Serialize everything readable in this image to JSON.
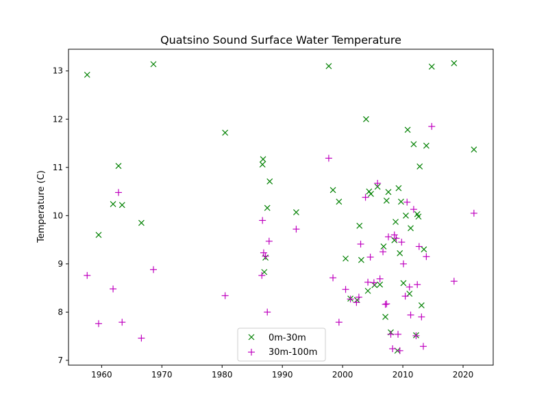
{
  "chart_data": {
    "type": "scatter",
    "title": "Quatsino Sound Surface Water Temperature",
    "xlabel": "",
    "ylabel": "Temperature (C)",
    "xlim": [
      1954.5,
      2025.0
    ],
    "ylim": [
      6.9,
      13.45
    ],
    "xticks": [
      1960,
      1970,
      1980,
      1990,
      2000,
      2010,
      2020
    ],
    "yticks": [
      7,
      8,
      9,
      10,
      11,
      12,
      13
    ],
    "grid": false,
    "legend_position": "bottom-center",
    "series": [
      {
        "name": "0m-30m",
        "marker": "x",
        "color": "#008000",
        "x": [
          1957.6,
          1959.5,
          1961.9,
          1962.8,
          1963.4,
          1966.6,
          1968.6,
          1980.5,
          1986.7,
          1986.8,
          1987.0,
          1987.2,
          1987.5,
          1987.9,
          1992.3,
          1997.7,
          1998.4,
          1999.4,
          2000.5,
          2001.3,
          2002.4,
          2002.8,
          2003.1,
          2003.9,
          2004.2,
          2004.4,
          2004.7,
          2005.3,
          2005.8,
          2006.2,
          2006.8,
          2007.1,
          2007.3,
          2007.6,
          2008.0,
          2008.6,
          2008.8,
          2009.1,
          2009.3,
          2009.5,
          2009.7,
          2010.1,
          2010.5,
          2010.8,
          2011.1,
          2011.3,
          2011.8,
          2012.2,
          2012.4,
          2012.6,
          2012.8,
          2013.1,
          2013.5,
          2013.9,
          2014.8,
          2018.5,
          2021.8
        ],
        "y": [
          12.92,
          9.6,
          10.24,
          11.03,
          10.22,
          9.85,
          13.14,
          11.72,
          11.06,
          11.17,
          8.83,
          9.13,
          10.16,
          10.71,
          10.07,
          13.1,
          10.53,
          10.29,
          9.11,
          8.28,
          8.25,
          9.79,
          9.08,
          12.0,
          8.44,
          10.5,
          10.45,
          8.56,
          10.6,
          8.57,
          9.36,
          7.9,
          10.31,
          10.49,
          7.58,
          9.49,
          9.87,
          7.2,
          10.57,
          9.22,
          10.29,
          8.6,
          10.0,
          11.78,
          8.38,
          9.74,
          11.48,
          7.52,
          10.03,
          9.98,
          11.02,
          8.14,
          9.3,
          11.45,
          13.09,
          13.16,
          11.37
        ]
      },
      {
        "name": "30m-100m",
        "marker": "+",
        "color": "#bf00bf",
        "x": [
          1957.6,
          1959.5,
          1961.9,
          1962.8,
          1963.4,
          1966.6,
          1968.6,
          1980.5,
          1986.6,
          1986.7,
          1986.9,
          1987.2,
          1987.5,
          1987.8,
          1992.3,
          1997.7,
          1998.4,
          1999.4,
          2000.5,
          2001.3,
          2002.3,
          2002.7,
          2003.0,
          2003.8,
          2004.2,
          2004.6,
          2005.2,
          2005.8,
          2006.2,
          2006.7,
          2007.1,
          2007.3,
          2007.6,
          2008.0,
          2008.3,
          2008.6,
          2008.9,
          2009.2,
          2009.5,
          2009.8,
          2010.1,
          2010.4,
          2010.7,
          2011.1,
          2011.3,
          2011.8,
          2012.2,
          2012.4,
          2012.7,
          2013.1,
          2013.4,
          2013.9,
          2014.8,
          2018.5,
          2021.8
        ],
        "y": [
          8.76,
          7.76,
          8.48,
          10.48,
          7.79,
          7.46,
          8.88,
          8.34,
          8.76,
          9.9,
          9.23,
          9.16,
          8.0,
          9.47,
          9.72,
          11.19,
          8.71,
          7.79,
          8.47,
          8.27,
          8.2,
          8.31,
          9.41,
          10.38,
          8.62,
          9.14,
          8.61,
          10.67,
          8.69,
          9.25,
          8.16,
          8.17,
          9.56,
          7.54,
          7.24,
          9.6,
          9.53,
          7.54,
          7.2,
          9.45,
          9.0,
          8.33,
          10.28,
          8.52,
          7.94,
          10.13,
          7.51,
          8.57,
          9.36,
          7.9,
          7.29,
          9.15,
          11.85,
          8.64,
          10.05
        ]
      }
    ]
  }
}
